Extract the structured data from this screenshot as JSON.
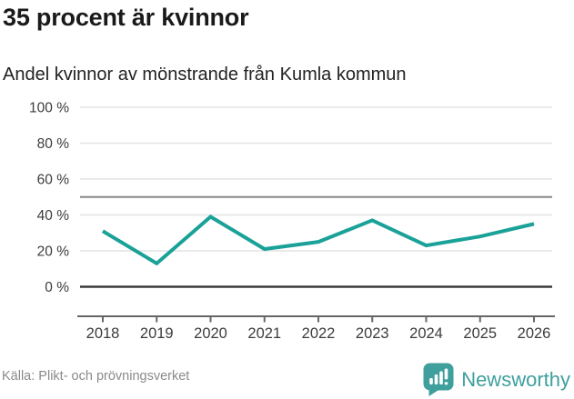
{
  "header": {
    "title": "35 procent är kvinnor",
    "subtitle": "Andel kvinnor av mönstrande från Kumla kommun"
  },
  "chart_data": {
    "type": "line",
    "title": "35 procent är kvinnor",
    "subtitle": "Andel kvinnor av mönstrande från Kumla kommun",
    "x": [
      "2018",
      "2019",
      "2020",
      "2021",
      "2022",
      "2023",
      "2024",
      "2025",
      "2026"
    ],
    "series": [
      {
        "name": "Andel kvinnor av mönstrande",
        "values": [
          31,
          13,
          39,
          21,
          25,
          37,
          23,
          28,
          35
        ]
      }
    ],
    "unit": "%",
    "ylim": [
      0,
      100
    ],
    "yticks": [
      0,
      20,
      40,
      60,
      80,
      100
    ],
    "ytick_suffix": " %",
    "reference_line_y": 50,
    "grid": true,
    "legend": "none",
    "line_color": "#1aa198"
  },
  "footer": {
    "source": "Källa: Plikt- och prövningsverket",
    "brand": "Newsworthy"
  },
  "colors": {
    "accent_teal": "#1aa198",
    "brand_teal": "#3f9f9d",
    "grid": "#e4e4e4",
    "reference_line": "#878787",
    "zero_line": "#3b3b3b",
    "axis": "#666666",
    "text_axis": "#3c3c3c"
  }
}
